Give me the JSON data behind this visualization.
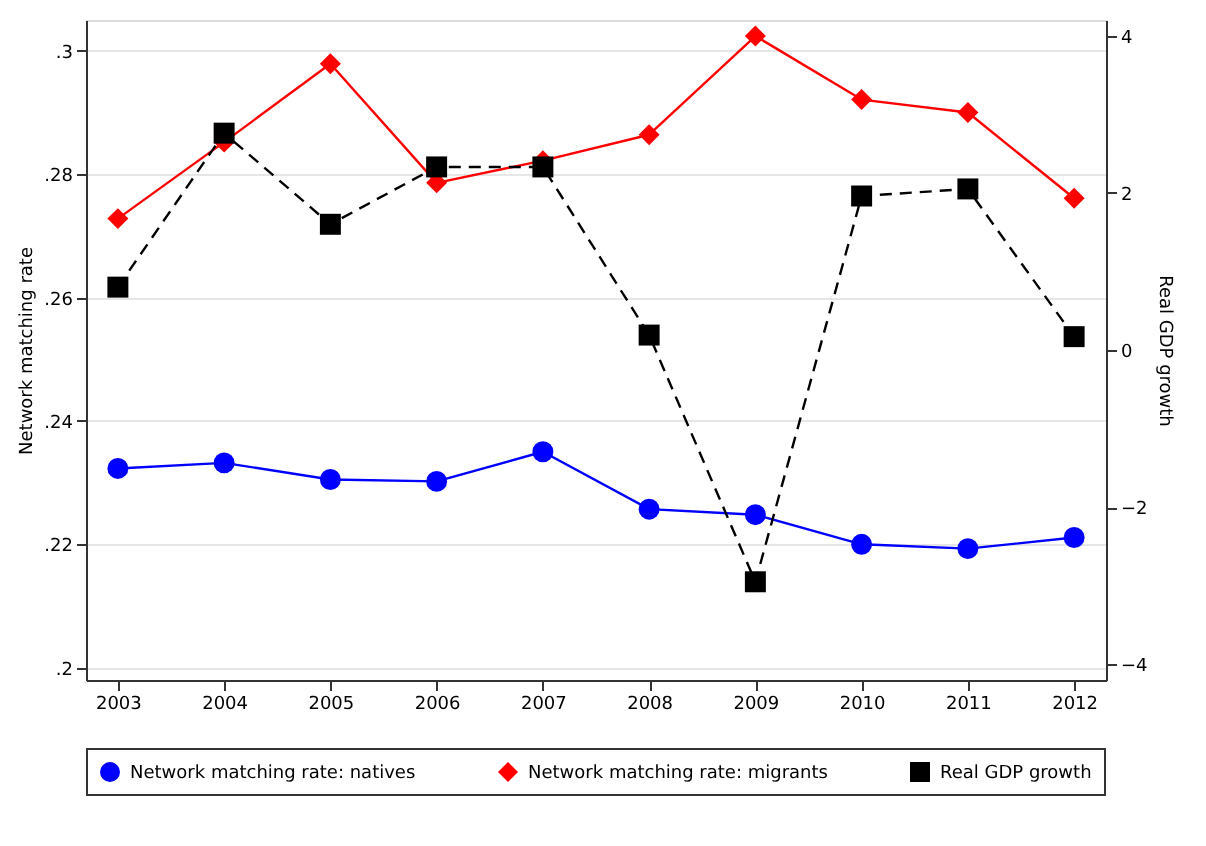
{
  "chart_data": {
    "type": "line",
    "categories": [
      "2003",
      "2004",
      "2005",
      "2006",
      "2007",
      "2008",
      "2009",
      "2010",
      "2011",
      "2012"
    ],
    "ylabel": "Network matching rate",
    "y2label": "Real GDP growth",
    "ylim": [
      0.198,
      0.305
    ],
    "yticks": [
      {
        "value": 0.2,
        "label": ".2"
      },
      {
        "value": 0.22,
        "label": ".22"
      },
      {
        "value": 0.24,
        "label": ".24"
      },
      {
        "value": 0.26,
        "label": ".26"
      },
      {
        "value": 0.28,
        "label": ".28"
      },
      {
        "value": 0.3,
        "label": ".3"
      }
    ],
    "y2lim": [
      -4.2,
      4.2
    ],
    "y2ticks": [
      {
        "value": -4,
        "label": "−4"
      },
      {
        "value": -2,
        "label": "−2"
      },
      0,
      2,
      4
    ],
    "grid": "y",
    "legend": "bottom",
    "series": [
      {
        "name": "Network matching rate: natives",
        "color": "#0000ff",
        "marker": "circle",
        "line_style": "solid",
        "values": [
          0.2323,
          0.2332,
          0.2305,
          0.2302,
          0.235,
          0.2257,
          0.2248,
          0.22,
          0.2193,
          0.2211
        ]
      },
      {
        "name": "Network matching rate: migrants",
        "color": "#ff0000",
        "marker": "diamond",
        "line_style": "solid",
        "values": [
          0.2728,
          0.2852,
          0.2979,
          0.2786,
          0.2822,
          0.2864,
          0.3024,
          0.2921,
          0.29,
          0.2761
        ]
      },
      {
        "name": "Real GDP growth",
        "color": "#000000",
        "marker": "square",
        "line_style": "dashed",
        "axis": "y2",
        "values": [
          0.8,
          2.76,
          1.6,
          2.33,
          2.33,
          0.19,
          -2.95,
          1.96,
          2.05,
          0.17
        ]
      }
    ]
  }
}
